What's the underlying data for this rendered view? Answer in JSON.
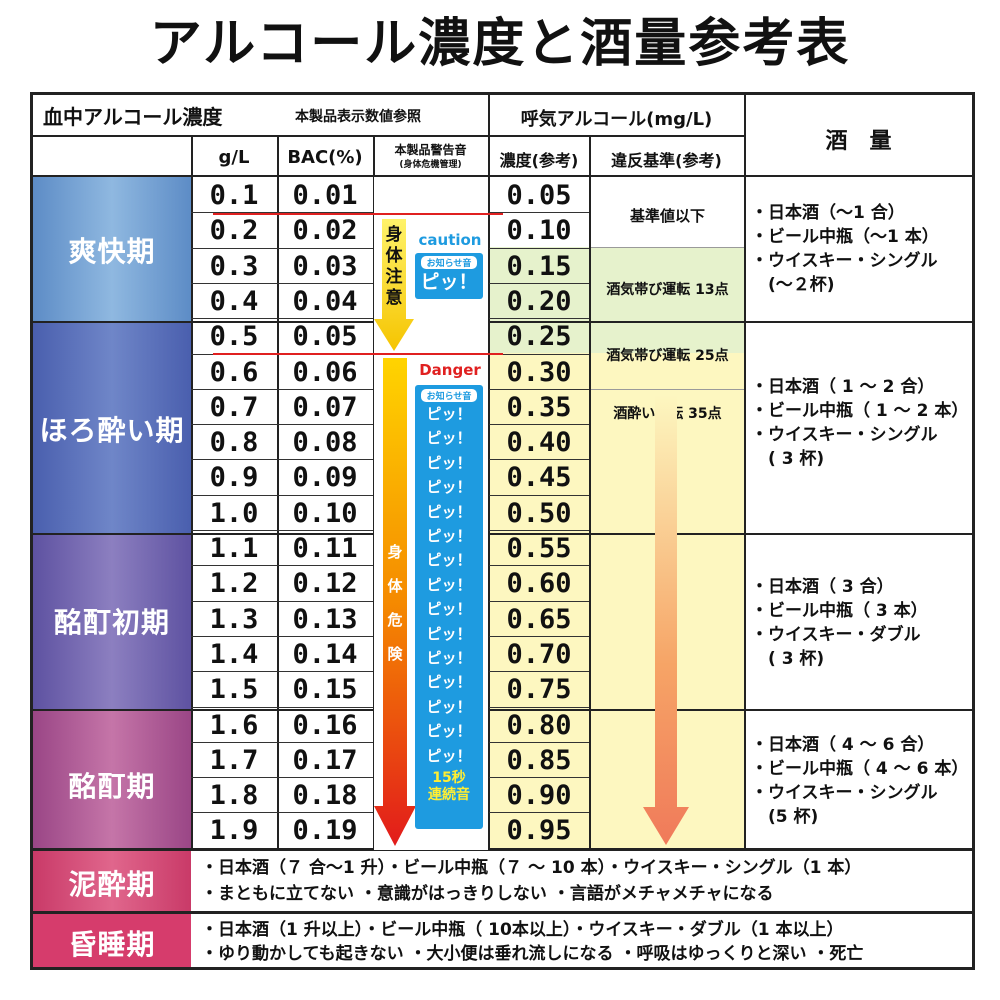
{
  "title": "アルコール濃度と酒量参考表",
  "header": {
    "blood_col": "血中アルコール濃度",
    "blood_note": "本製品表示数値参照",
    "gl": "g/L",
    "bac": "BAC(%)",
    "warning_sound": "本製品警告音",
    "warning_sub": "(身体危機管理)",
    "breath_col": "呼気アルコール(mg/L)",
    "concentration": "濃度(参考)",
    "violation": "違反基準(参考)",
    "amount": "酒　量"
  },
  "rows": [
    {
      "gl": "0.1",
      "bac": "0.01",
      "breath": "0.05"
    },
    {
      "gl": "0.2",
      "bac": "0.02",
      "breath": "0.10"
    },
    {
      "gl": "0.3",
      "bac": "0.03",
      "breath": "0.15"
    },
    {
      "gl": "0.4",
      "bac": "0.04",
      "breath": "0.20"
    },
    {
      "gl": "0.5",
      "bac": "0.05",
      "breath": "0.25"
    },
    {
      "gl": "0.6",
      "bac": "0.06",
      "breath": "0.30"
    },
    {
      "gl": "0.7",
      "bac": "0.07",
      "breath": "0.35"
    },
    {
      "gl": "0.8",
      "bac": "0.08",
      "breath": "0.40"
    },
    {
      "gl": "0.9",
      "bac": "0.09",
      "breath": "0.45"
    },
    {
      "gl": "1.0",
      "bac": "0.10",
      "breath": "0.50"
    },
    {
      "gl": "1.1",
      "bac": "0.11",
      "breath": "0.55"
    },
    {
      "gl": "1.2",
      "bac": "0.12",
      "breath": "0.60"
    },
    {
      "gl": "1.3",
      "bac": "0.13",
      "breath": "0.65"
    },
    {
      "gl": "1.4",
      "bac": "0.14",
      "breath": "0.70"
    },
    {
      "gl": "1.5",
      "bac": "0.15",
      "breath": "0.75"
    },
    {
      "gl": "1.6",
      "bac": "0.16",
      "breath": "0.80"
    },
    {
      "gl": "1.7",
      "bac": "0.17",
      "breath": "0.85"
    },
    {
      "gl": "1.8",
      "bac": "0.18",
      "breath": "0.90"
    },
    {
      "gl": "1.9",
      "bac": "0.19",
      "breath": "0.95"
    }
  ],
  "phases": {
    "p1": "爽快期",
    "p2": "ほろ酔い期",
    "p3": "酩酊初期",
    "p4": "酩酊期",
    "p5": "泥酔期",
    "p6": "昏睡期"
  },
  "warning": {
    "caution_vertical": [
      "身",
      "体",
      "注",
      "意"
    ],
    "caution_label": "caution",
    "notice": "お知らせ音",
    "beep": "ピッ！",
    "danger_label": "Danger",
    "danger_vertical": [
      "身",
      "体",
      "危",
      "険"
    ],
    "beeps": [
      "ピッ！",
      "ピッ！",
      "ピッ！",
      "ピッ！",
      "ピッ！",
      "ピッ！",
      "ピッ！",
      "ピッ！",
      "ピッ！",
      "ピッ！",
      "ピッ！",
      "ピッ！",
      "ピッ！",
      "ピッ！",
      "ピッ！"
    ],
    "continuous_1": "15秒",
    "continuous_2": "連続音"
  },
  "violation": {
    "below": "基準値以下",
    "tipsy13": "酒気帯び運転 13点",
    "tipsy25": "酒気帯び運転 25点",
    "drunk35": "酒酔い運転 35点"
  },
  "amounts": {
    "a1": [
      "・日本酒（〜1 合）",
      "・ビール中瓶（〜1 本）",
      "・ウイスキー・シングル",
      "　(〜２杯)"
    ],
    "a2": [
      "・日本酒（ 1 〜 2 合）",
      "・ビール中瓶（ 1 〜 2 本）",
      "・ウイスキー・シングル",
      "　( 3 杯)"
    ],
    "a3": [
      "・日本酒（ 3 合）",
      "・ビール中瓶（ 3 本）",
      "・ウイスキー・ダブル",
      "　( 3 杯)"
    ],
    "a4": [
      "・日本酒（ 4 〜 6 合）",
      "・ビール中瓶（ 4 〜 6 本）",
      "・ウイスキー・シングル",
      "　(5 杯)"
    ]
  },
  "bottom": {
    "deep1": "・日本酒（７ 合〜1 升）・ビール中瓶（７ 〜 10 本）・ウイスキー・シングル（1 本）",
    "deep2": "・まともに立てない ・意識がはっきりしない ・言語がメチャメチャになる",
    "coma1": "・日本酒（1 升以上）・ビール中瓶（ 10本以上）・ウイスキー・ダブル（1 本以上）",
    "coma2": "・ゆり動かしても起きない ・大小便は垂れ流しになる ・呼吸はゆっくりと深い ・死亡"
  },
  "colors": {
    "phase1": "#5b8fc9",
    "phase2": "#4a63b0",
    "phase3": "#6a5aa8",
    "phase4": "#a34f8e",
    "phase5": "#d2416e",
    "phase6": "#d2416e",
    "caution_blue": "#1e9be0",
    "danger_red": "#e02020",
    "breath_yellow": "#fdf7c0",
    "breath_green": "#e6f2cc"
  }
}
